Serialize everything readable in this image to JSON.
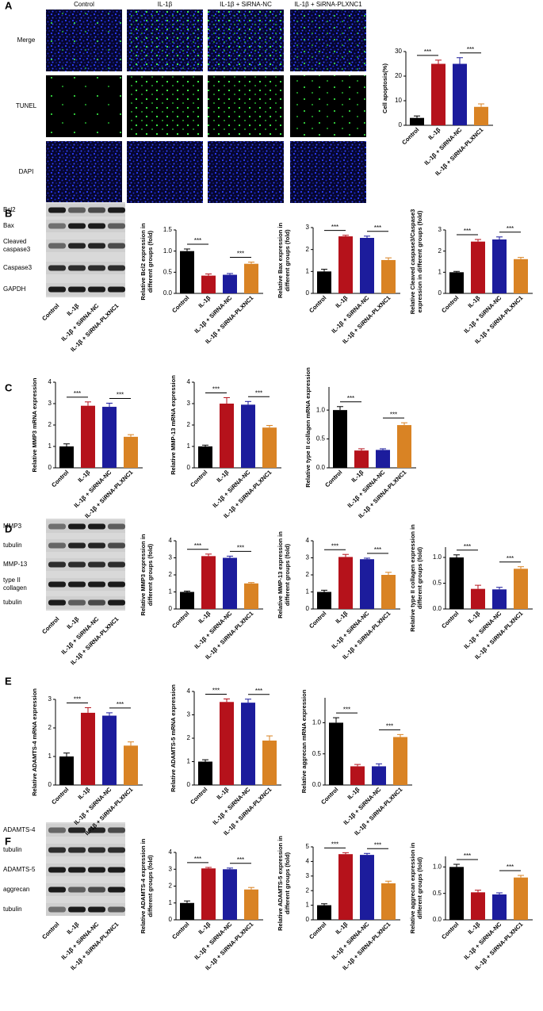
{
  "panels": [
    "A",
    "B",
    "C",
    "D",
    "E",
    "F"
  ],
  "microscopy": {
    "columns": [
      "Control",
      "IL-1β",
      "IL-1β + SiRNA-NC",
      "IL-1β + SiRNA-PLXNC1"
    ],
    "rows": [
      "Merge",
      "TUNEL",
      "DAPI"
    ]
  },
  "blots": [
    {
      "labels": [
        "Bcl2",
        "Bax",
        [
          "Cleaved",
          "caspase3"
        ],
        "Caspase3",
        "GAPDH"
      ],
      "categories": [
        "Control",
        "IL-1β",
        "IL-1β + SiRNA-NC",
        "IL-1β + SiRNA-PLXNC1"
      ]
    },
    {
      "labels": [
        "MMP3",
        "tubulin",
        "MMP-13",
        [
          "type II",
          "collagen"
        ],
        "tubulin"
      ],
      "categories": [
        "Control",
        "IL-1β",
        "IL-1β + SiRNA-NC",
        "IL-1β + SiRNA-PLXNC1"
      ]
    },
    {
      "labels": [
        "ADAMTS-4",
        "tubulin",
        "ADAMTS-5",
        "aggrecan",
        "tubulin"
      ],
      "categories": [
        "Control",
        "IL-1β",
        "IL-1β + SiRNA-NC",
        "IL-1β + SiRNA-PLXNC1"
      ]
    }
  ],
  "chart_data": [
    {
      "type": "bar",
      "ylabel": "Cell apoptosis(%)",
      "categories": [
        "Control",
        "IL-1β",
        "IL-1β + SiRNA-NC",
        "IL-1β + SiRNA-PLXNC1"
      ],
      "values": [
        3,
        25,
        25,
        7.5
      ],
      "errors": [
        0.8,
        1.5,
        2.5,
        1.2
      ],
      "colors": [
        "#000000",
        "#b5121b",
        "#1c1c9c",
        "#d98324"
      ],
      "ylim": [
        0,
        30
      ],
      "yticks": [
        0,
        10,
        20,
        30
      ],
      "significance": [
        {
          "label": "***",
          "pair": [
            0,
            1
          ]
        },
        {
          "label": "***",
          "pair": [
            2,
            3
          ]
        }
      ]
    },
    {
      "type": "bar",
      "ylabel": [
        "Relative Bcl2 expression in",
        "different groups (fold)"
      ],
      "categories": [
        "Control",
        "IL-1β",
        "IL-1β + SiRNA-NC",
        "IL-1β + SiRNA-PLXNC1"
      ],
      "values": [
        1.0,
        0.42,
        0.44,
        0.7
      ],
      "errors": [
        0.05,
        0.04,
        0.03,
        0.04
      ],
      "colors": [
        "#000000",
        "#b5121b",
        "#1c1c9c",
        "#d98324"
      ],
      "ylim": [
        0,
        1.5
      ],
      "yticks": [
        {
          "value": 0,
          "label": "0.0"
        },
        0.5,
        {
          "value": 1,
          "label": "1.0"
        },
        1.5
      ],
      "significance": [
        {
          "label": "***",
          "pair": [
            0,
            1
          ]
        },
        {
          "label": "***",
          "pair": [
            2,
            3
          ]
        }
      ]
    },
    {
      "type": "bar",
      "ylabel": [
        "Relative Bax expression in",
        "different groups (fold)"
      ],
      "categories": [
        "Control",
        "IL-1β",
        "IL-1β + SiRNA-NC",
        "IL-1β + SiRNA-PLXNC1"
      ],
      "values": [
        1.0,
        2.6,
        2.53,
        1.52
      ],
      "errors": [
        0.1,
        0.05,
        0.08,
        0.1
      ],
      "colors": [
        "#000000",
        "#b5121b",
        "#1c1c9c",
        "#d98324"
      ],
      "ylim": [
        0,
        3
      ],
      "yticks": [
        0,
        1,
        2,
        3
      ],
      "significance": [
        {
          "label": "***",
          "pair": [
            0,
            1
          ]
        },
        {
          "label": "***",
          "pair": [
            2,
            3
          ]
        }
      ]
    },
    {
      "type": "bar",
      "ylabel": [
        "Relative Cleaved caspase3/Caspase3",
        "expression in different groups (fold)"
      ],
      "categories": [
        "Control",
        "IL-1β",
        "IL-1β + SiRNA-NC",
        "IL-1β + SiRNA-PLXNC1"
      ],
      "values": [
        1.0,
        2.45,
        2.55,
        1.62
      ],
      "errors": [
        0.04,
        0.1,
        0.12,
        0.08
      ],
      "colors": [
        "#000000",
        "#b5121b",
        "#1c1c9c",
        "#d98324"
      ],
      "ylim": [
        0,
        3
      ],
      "yticks": [
        0,
        1,
        2,
        3
      ],
      "significance": [
        {
          "label": "***",
          "pair": [
            0,
            1
          ]
        },
        {
          "label": "***",
          "pair": [
            2,
            3
          ]
        }
      ]
    },
    {
      "type": "bar",
      "ylabel": "Relative MMP3 mRNA expression",
      "categories": [
        "Control",
        "IL-1β",
        "IL-1β + SiRNA-NC",
        "IL-1β + SiRNA-PLXNC1"
      ],
      "values": [
        1.0,
        2.9,
        2.85,
        1.45
      ],
      "errors": [
        0.12,
        0.18,
        0.17,
        0.1
      ],
      "colors": [
        "#000000",
        "#b5121b",
        "#1c1c9c",
        "#d98324"
      ],
      "ylim": [
        0,
        4
      ],
      "yticks": [
        0,
        1,
        2,
        3,
        4
      ],
      "significance": [
        {
          "label": "***",
          "pair": [
            0,
            1
          ]
        },
        {
          "label": "***",
          "pair": [
            2,
            3
          ]
        }
      ]
    },
    {
      "type": "bar",
      "ylabel": "Relative MMP-13 mRNA expression",
      "categories": [
        "Control",
        "IL-1β",
        "IL-1β + SiRNA-NC",
        "IL-1β + SiRNA-PLXNC1"
      ],
      "values": [
        1.0,
        3.0,
        2.95,
        1.88
      ],
      "errors": [
        0.06,
        0.28,
        0.15,
        0.1
      ],
      "colors": [
        "#000000",
        "#b5121b",
        "#1c1c9c",
        "#d98324"
      ],
      "ylim": [
        0,
        4
      ],
      "yticks": [
        0,
        1,
        2,
        3,
        4
      ],
      "significance": [
        {
          "label": "***",
          "pair": [
            0,
            1
          ]
        },
        {
          "label": "***",
          "pair": [
            2,
            3
          ]
        }
      ]
    },
    {
      "type": "bar",
      "ylabel": "Relative type II collagen mRNA expression",
      "categories": [
        "Control",
        "IL-1β",
        "IL-1β + SiRNA-NC",
        "IL-1β + SiRNA-PLXNC1"
      ],
      "values": [
        1.0,
        0.3,
        0.31,
        0.74
      ],
      "errors": [
        0.06,
        0.03,
        0.02,
        0.04
      ],
      "colors": [
        "#000000",
        "#b5121b",
        "#1c1c9c",
        "#d98324"
      ],
      "ylim": [
        0,
        1.4
      ],
      "yticks": [
        {
          "value": 0,
          "label": "0.0"
        },
        0.5,
        {
          "value": 1,
          "label": "1.0"
        }
      ],
      "significance": [
        {
          "label": "***",
          "pair": [
            0,
            1
          ]
        },
        {
          "label": "***",
          "pair": [
            2,
            3
          ]
        }
      ]
    },
    {
      "type": "bar",
      "ylabel": [
        "Relative MMP3 expression in",
        "different groups (fold)"
      ],
      "categories": [
        "Control",
        "IL-1β",
        "IL-1β + SiRNA-NC",
        "IL-1β + SiRNA-PLXNC1"
      ],
      "values": [
        1.0,
        3.1,
        3.0,
        1.5
      ],
      "errors": [
        0.05,
        0.12,
        0.1,
        0.05
      ],
      "colors": [
        "#000000",
        "#b5121b",
        "#1c1c9c",
        "#d98324"
      ],
      "ylim": [
        0,
        4
      ],
      "yticks": [
        0,
        1,
        2,
        3,
        4
      ],
      "significance": [
        {
          "label": "***",
          "pair": [
            0,
            1
          ]
        },
        {
          "label": "***",
          "pair": [
            2,
            3
          ]
        }
      ]
    },
    {
      "type": "bar",
      "ylabel": [
        "Relative MMP-13 expression in",
        "different groups (fold)"
      ],
      "categories": [
        "Control",
        "IL-1β",
        "IL-1β + SiRNA-NC",
        "IL-1β + SiRNA-PLXNC1"
      ],
      "values": [
        1.0,
        3.05,
        2.92,
        2.0
      ],
      "errors": [
        0.1,
        0.15,
        0.06,
        0.15
      ],
      "colors": [
        "#000000",
        "#b5121b",
        "#1c1c9c",
        "#d98324"
      ],
      "ylim": [
        0,
        4
      ],
      "yticks": [
        0,
        1,
        2,
        3,
        4
      ],
      "significance": [
        {
          "label": "***",
          "pair": [
            0,
            1
          ]
        },
        {
          "label": "***",
          "pair": [
            2,
            3
          ]
        }
      ]
    },
    {
      "type": "bar",
      "ylabel": [
        "Relative type II collagen expression in",
        "different groups (fold)"
      ],
      "categories": [
        "Control",
        "IL-1β",
        "IL-1β + SiRNA-NC",
        "IL-1β + SiRNA-PLXNC1"
      ],
      "values": [
        1.0,
        0.39,
        0.38,
        0.78
      ],
      "errors": [
        0.05,
        0.07,
        0.04,
        0.04
      ],
      "colors": [
        "#000000",
        "#b5121b",
        "#1c1c9c",
        "#d98324"
      ],
      "ylim": [
        0,
        1.2
      ],
      "yticks": [
        {
          "value": 0,
          "label": "0.0"
        },
        0.5,
        {
          "value": 1,
          "label": "1.0"
        }
      ],
      "significance": [
        {
          "label": "***",
          "pair": [
            0,
            1
          ]
        },
        {
          "label": "***",
          "pair": [
            2,
            3
          ]
        }
      ]
    },
    {
      "type": "bar",
      "ylabel": "Relative ADAMTS-4 mRNA expression",
      "categories": [
        "Control",
        "IL-1β",
        "IL-1β + SiRNA-NC",
        "IL-1β + SiRNA-PLXNC1"
      ],
      "values": [
        1.0,
        2.53,
        2.43,
        1.38
      ],
      "errors": [
        0.12,
        0.18,
        0.1,
        0.13
      ],
      "colors": [
        "#000000",
        "#b5121b",
        "#1c1c9c",
        "#d98324"
      ],
      "ylim": [
        0,
        3
      ],
      "yticks": [
        0,
        1,
        2,
        3
      ],
      "significance": [
        {
          "label": "***",
          "pair": [
            0,
            1
          ]
        },
        {
          "label": "***",
          "pair": [
            2,
            3
          ]
        }
      ]
    },
    {
      "type": "bar",
      "ylabel": "Relative ADAMTS-5 mRNA expression",
      "categories": [
        "Control",
        "IL-1β",
        "IL-1β + SiRNA-NC",
        "IL-1β + SiRNA-PLXNC1"
      ],
      "values": [
        1.0,
        3.55,
        3.52,
        1.9
      ],
      "errors": [
        0.08,
        0.13,
        0.15,
        0.2
      ],
      "colors": [
        "#000000",
        "#b5121b",
        "#1c1c9c",
        "#d98324"
      ],
      "ylim": [
        0,
        4
      ],
      "yticks": [
        0,
        1,
        2,
        3,
        4
      ],
      "significance": [
        {
          "label": "***",
          "pair": [
            0,
            1
          ]
        },
        {
          "label": "***",
          "pair": [
            2,
            3
          ]
        }
      ]
    },
    {
      "type": "bar",
      "ylabel": "Relative aggrecan mRNA expression",
      "categories": [
        "Control",
        "IL-1β",
        "IL-1β + SiRNA-NC",
        "IL-1β + SiRNA-PLXNC1"
      ],
      "values": [
        1.0,
        0.3,
        0.3,
        0.77
      ],
      "errors": [
        0.08,
        0.03,
        0.04,
        0.04
      ],
      "colors": [
        "#000000",
        "#b5121b",
        "#1c1c9c",
        "#d98324"
      ],
      "ylim": [
        0,
        1.4
      ],
      "yticks": [
        {
          "value": 0,
          "label": "0.0"
        },
        0.5,
        {
          "value": 1,
          "label": "1.0"
        }
      ],
      "significance": [
        {
          "label": "***",
          "pair": [
            0,
            1
          ]
        },
        {
          "label": "***",
          "pair": [
            2,
            3
          ]
        }
      ]
    },
    {
      "type": "bar",
      "ylabel": [
        "Relative ADAMTS-4 expression in",
        "different groups (fold)"
      ],
      "categories": [
        "Control",
        "IL-1β",
        "IL-1β + SiRNA-NC",
        "IL-1β + SiRNA-PLXNC1"
      ],
      "values": [
        1.0,
        3.05,
        3.0,
        1.8
      ],
      "errors": [
        0.12,
        0.06,
        0.07,
        0.12
      ],
      "colors": [
        "#000000",
        "#b5121b",
        "#1c1c9c",
        "#d98324"
      ],
      "ylim": [
        0,
        4
      ],
      "yticks": [
        0,
        1,
        2,
        3,
        4
      ],
      "significance": [
        {
          "label": "***",
          "pair": [
            0,
            1
          ]
        },
        {
          "label": "***",
          "pair": [
            2,
            3
          ]
        }
      ]
    },
    {
      "type": "bar",
      "ylabel": [
        "Relative ADAMTS-5 expression in",
        "different groups (fold)"
      ],
      "categories": [
        "Control",
        "IL-1β",
        "IL-1β + SiRNA-NC",
        "IL-1β + SiRNA-PLXNC1"
      ],
      "values": [
        1.0,
        4.5,
        4.45,
        2.5
      ],
      "errors": [
        0.1,
        0.1,
        0.1,
        0.15
      ],
      "colors": [
        "#000000",
        "#b5121b",
        "#1c1c9c",
        "#d98324"
      ],
      "ylim": [
        0,
        5
      ],
      "yticks": [
        0,
        1,
        2,
        3,
        4,
        5
      ],
      "significance": [
        {
          "label": "***",
          "pair": [
            0,
            1
          ]
        },
        {
          "label": "***",
          "pair": [
            2,
            3
          ]
        }
      ]
    },
    {
      "type": "bar",
      "ylabel": [
        "Relative aggrecan expression in",
        "different groups (fold)"
      ],
      "categories": [
        "Control",
        "IL-1β",
        "IL-1β + SiRNA-NC",
        "IL-1β + SiRNA-PLXNC1"
      ],
      "values": [
        1.0,
        0.52,
        0.48,
        0.8
      ],
      "errors": [
        0.05,
        0.04,
        0.03,
        0.04
      ],
      "colors": [
        "#000000",
        "#b5121b",
        "#1c1c9c",
        "#d98324"
      ],
      "ylim": [
        0,
        1.2
      ],
      "yticks": [
        {
          "value": 0,
          "label": "0.0"
        },
        0.5,
        {
          "value": 1,
          "label": "1.0"
        }
      ],
      "significance": [
        {
          "label": "***",
          "pair": [
            0,
            1
          ]
        },
        {
          "label": "***",
          "pair": [
            2,
            3
          ]
        }
      ]
    }
  ]
}
